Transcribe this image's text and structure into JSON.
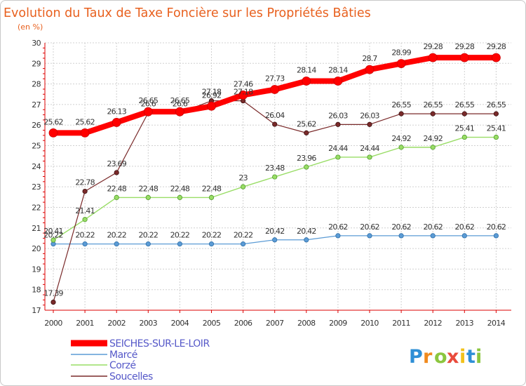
{
  "chart_data": {
    "type": "line",
    "title": "Evolution du Taux de Taxe Foncière sur les Propriétés Bâties",
    "ylabel": "(en %)",
    "xlabel": "",
    "x": [
      "2000",
      "2001",
      "2002",
      "2003",
      "2004",
      "2005",
      "2006",
      "2007",
      "2008",
      "2009",
      "2010",
      "2011",
      "2012",
      "2013",
      "2014"
    ],
    "ylim": [
      17,
      30
    ],
    "yticks": [
      "17",
      "18",
      "19",
      "20",
      "21",
      "22",
      "23",
      "24",
      "25",
      "26",
      "27",
      "28",
      "29",
      "30"
    ],
    "grid": true,
    "series": [
      {
        "name": "SEICHES-SUR-LE-LOIR",
        "color": "#ff0000",
        "values": [
          25.62,
          25.62,
          26.13,
          26.65,
          26.65,
          26.92,
          27.46,
          27.73,
          28.14,
          28.14,
          28.7,
          28.99,
          29.28,
          29.28,
          29.28
        ],
        "labels": [
          "25.62",
          "25.62",
          "26.13",
          "26.65",
          "26.65",
          "26.92",
          "27.46",
          "27.73",
          "28.14",
          "28.14",
          "28.7",
          "28.99",
          "29.28",
          "29.28",
          "29.28"
        ]
      },
      {
        "name": "Marcé",
        "color": "#5b9bd5",
        "values": [
          20.22,
          20.22,
          20.22,
          20.22,
          20.22,
          20.22,
          20.22,
          20.42,
          20.42,
          20.62,
          20.62,
          20.62,
          20.62,
          20.62,
          20.62
        ],
        "labels": [
          "20.22",
          "20.22",
          "20.22",
          "20.22",
          "20.22",
          "20.22",
          "20.22",
          "20.42",
          "20.42",
          "20.62",
          "20.62",
          "20.62",
          "20.62",
          "20.62",
          "20.62"
        ]
      },
      {
        "name": "Corzé",
        "color": "#99dd66",
        "values": [
          20.41,
          21.41,
          22.48,
          22.48,
          22.48,
          22.48,
          23,
          23.48,
          23.96,
          24.44,
          24.44,
          24.92,
          24.92,
          25.41,
          25.41
        ],
        "labels": [
          "20.41",
          "21.41",
          "22.48",
          "22.48",
          "22.48",
          "22.48",
          "23",
          "23.48",
          "23.96",
          "24.44",
          "24.44",
          "24.92",
          "24.92",
          "25.41",
          "25.41"
        ]
      },
      {
        "name": "Soucelles",
        "color": "#7a2a2a",
        "values": [
          17.39,
          22.78,
          23.69,
          26.6,
          26.6,
          27.18,
          27.18,
          26.04,
          25.62,
          26.03,
          26.03,
          26.55,
          26.55,
          26.55,
          26.55
        ],
        "labels": [
          "17.39",
          "22.78",
          "23.69",
          "26.6",
          "26.6",
          "27.18",
          "27.18",
          "26.04",
          "25.62",
          "26.03",
          "26.03",
          "26.55",
          "26.55",
          "26.55",
          "26.55"
        ]
      }
    ]
  },
  "logo": {
    "letters": [
      "P",
      "r",
      "o",
      "x",
      "i",
      "t",
      "i"
    ]
  }
}
